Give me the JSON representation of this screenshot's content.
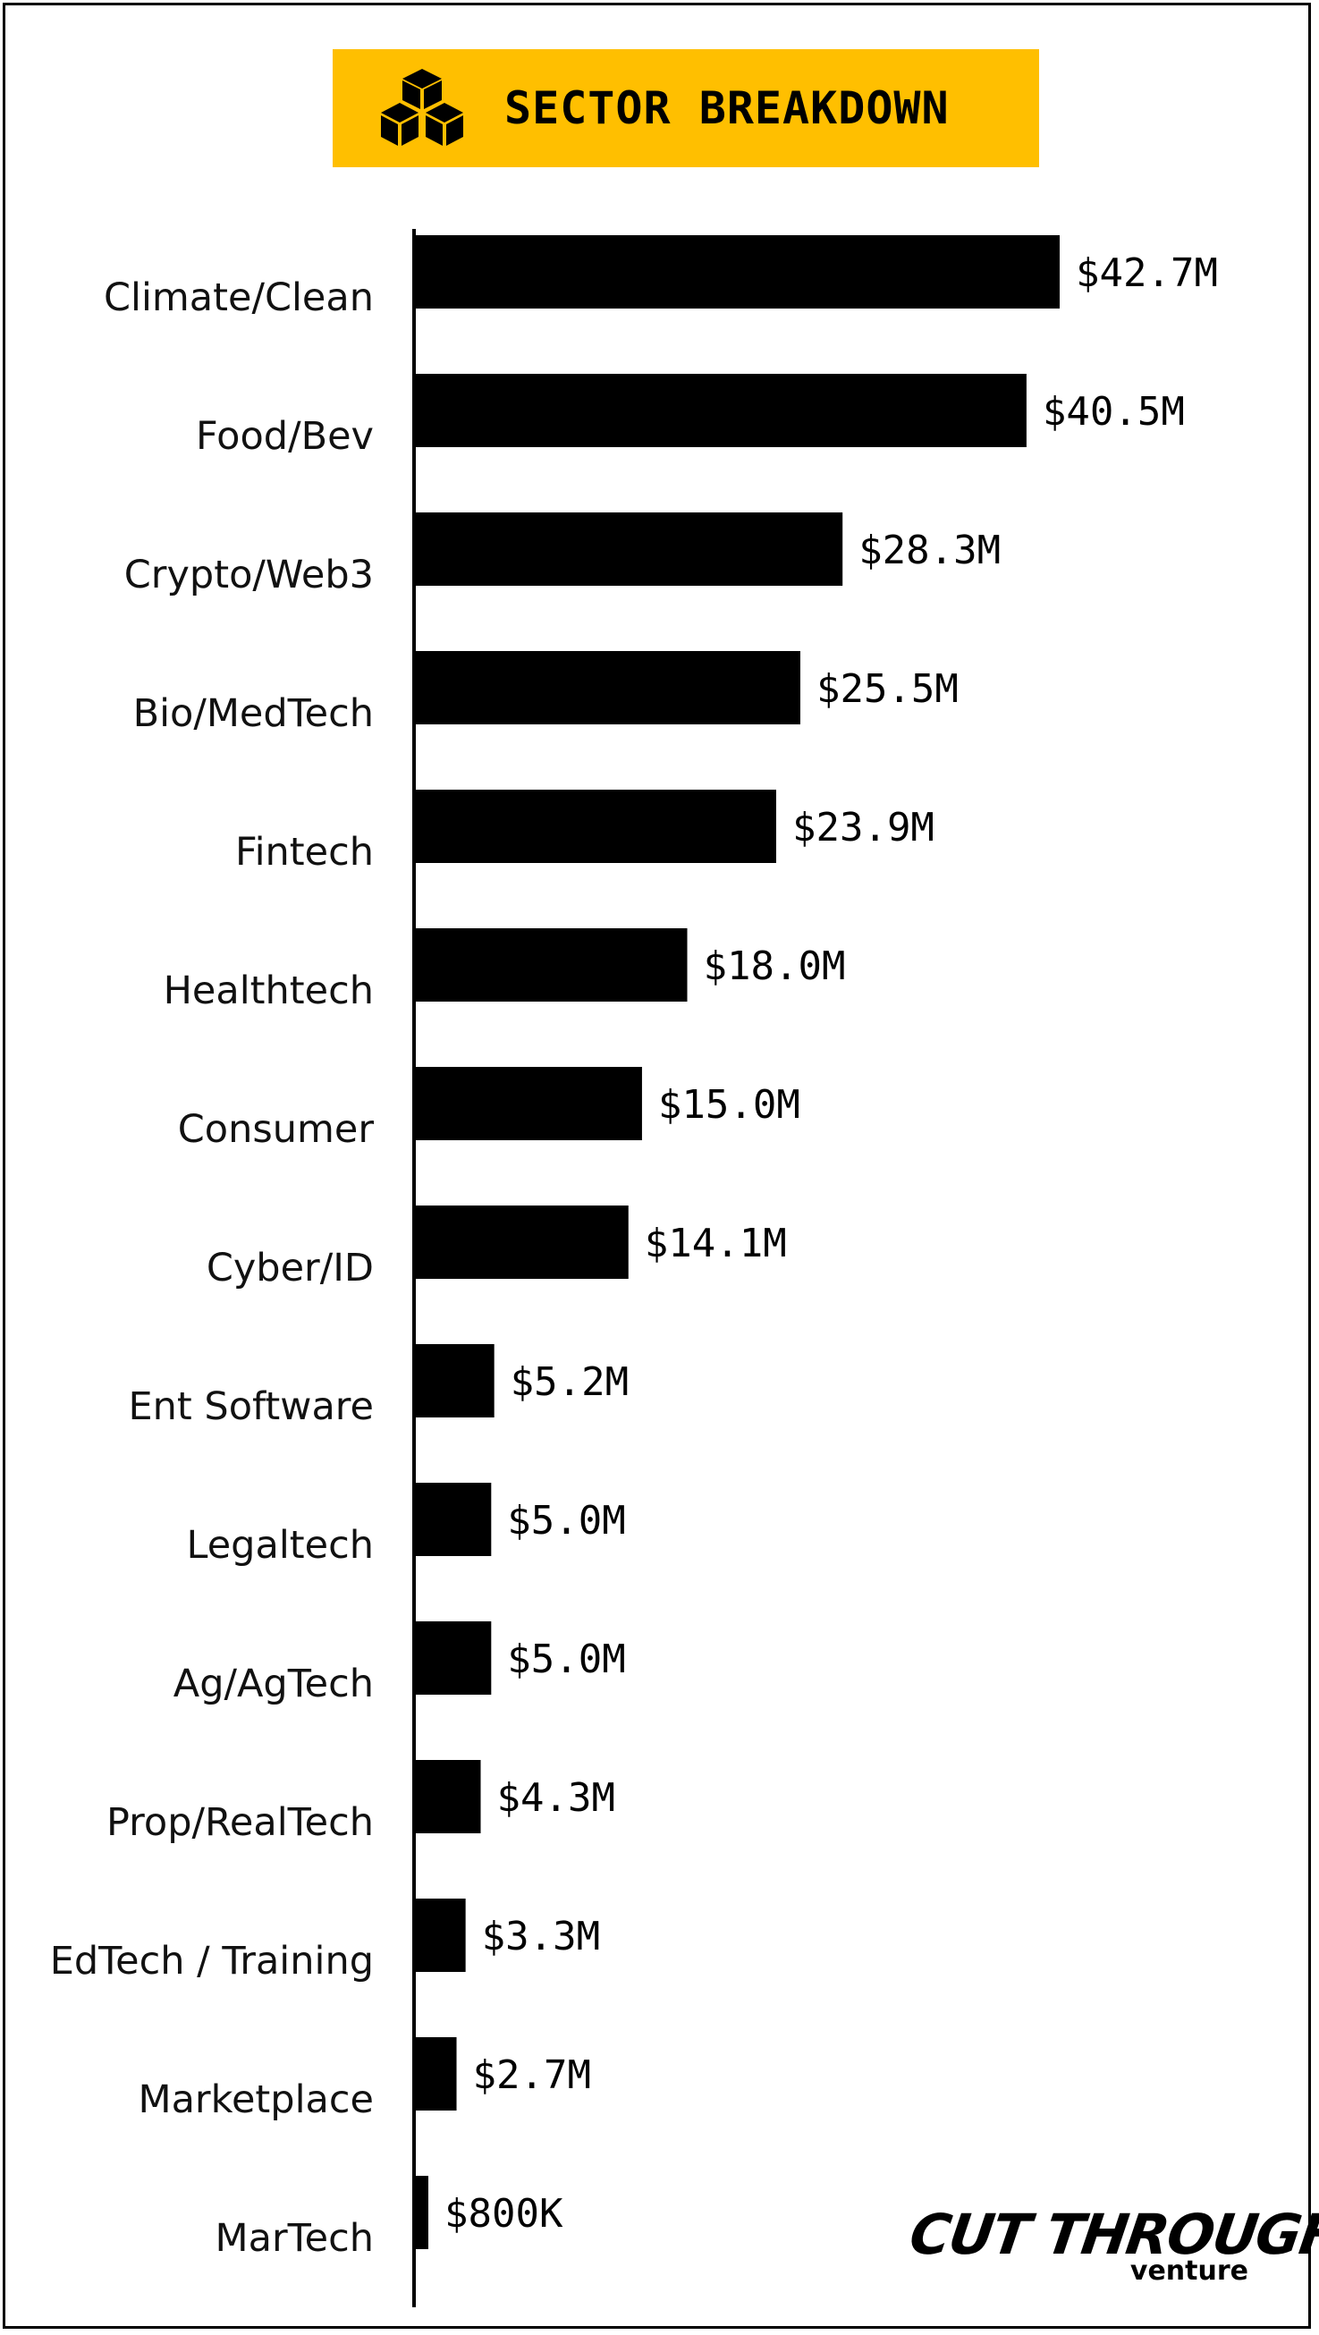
{
  "header": {
    "title": "SECTOR BREAKDOWN",
    "icon": "stacked-cubes-icon",
    "accent_color": "#FFBF00"
  },
  "chart_data": {
    "type": "bar",
    "orientation": "horizontal",
    "categories": [
      "Climate/Clean",
      "Food/Bev",
      "Crypto/Web3",
      "Bio/MedTech",
      "Fintech",
      "Healthtech",
      "Consumer",
      "Cyber/ID",
      "Ent Software",
      "Legaltech",
      "Ag/AgTech",
      "Prop/RealTech",
      "EdTech / Training",
      "Marketplace",
      "MarTech"
    ],
    "values": [
      42.7,
      40.5,
      28.3,
      25.5,
      23.9,
      18.0,
      15.0,
      14.1,
      5.2,
      5.0,
      5.0,
      4.3,
      3.3,
      2.7,
      0.8
    ],
    "value_labels": [
      "$42.7M",
      "$40.5M",
      "$28.3M",
      "$25.5M",
      "$23.9M",
      "$18.0M",
      "$15.0M",
      "$14.1M",
      "$5.2M",
      "$5.0M",
      "$5.0M",
      "$4.3M",
      "$3.3M",
      "$2.7M",
      "$800K"
    ],
    "unit": "$M",
    "bar_color": "#000000",
    "grid": false,
    "legend": false
  },
  "logo": {
    "main": "CUT THROUGH",
    "sub": "venture"
  }
}
